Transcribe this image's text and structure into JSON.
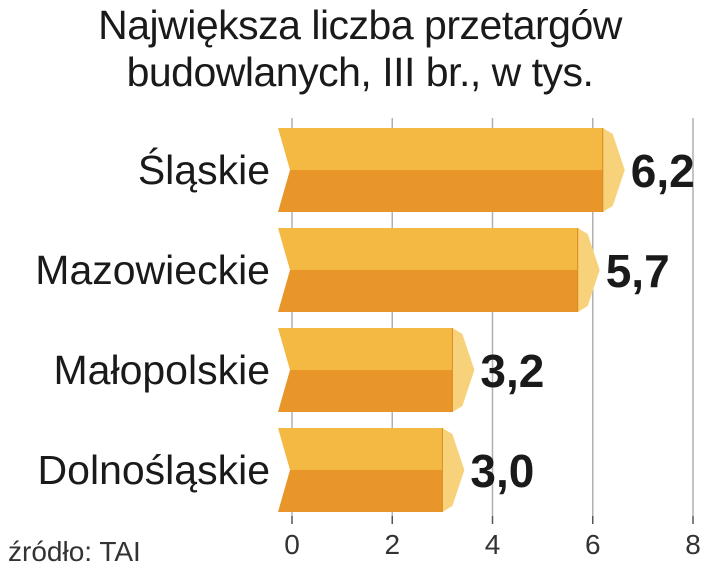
{
  "chart_data": {
    "type": "bar",
    "orientation": "horizontal",
    "title_lines": [
      "Największa liczba przetargów",
      "budowlanych, III br., w tys."
    ],
    "categories": [
      "Śląskie",
      "Mazowieckie",
      "Małopolskie",
      "Dolnośląskie"
    ],
    "values": [
      6.2,
      5.7,
      3.2,
      3.0
    ],
    "value_labels": [
      "6,2",
      "5,7",
      "3,2",
      "3,0"
    ],
    "xlim": [
      0,
      8
    ],
    "xticks": [
      0,
      2,
      4,
      6,
      8
    ],
    "tick_labels": [
      "0",
      "2",
      "4",
      "6",
      "8"
    ],
    "grid": true,
    "colors": {
      "bar_top": "#f4b942",
      "bar_bottom": "#e8962a",
      "bar_cap": "#f8d27a",
      "grid": "#b0b0b0"
    }
  },
  "source": "źródło: TAI"
}
